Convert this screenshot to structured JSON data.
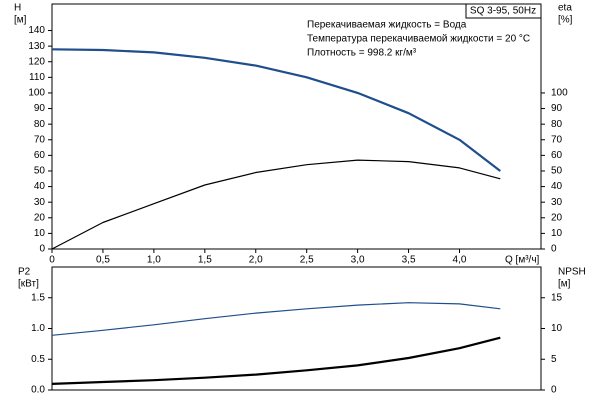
{
  "chart_data": [
    {
      "type": "line",
      "title": "SQ 3-95, 50Hz",
      "annotations": [
        "Перекачиваемая жидкость = Вода",
        "Температура перекачиваемой жидкости = 20 °C",
        "Плотность = 998.2 кг/м³"
      ],
      "x_label": "Q [м³/ч]",
      "y_label": [
        "H",
        "[м]"
      ],
      "y2_label": [
        "eta",
        "[%]"
      ],
      "x": [
        0,
        0.5,
        1,
        1.5,
        2,
        2.5,
        3,
        3.5,
        4,
        4.4
      ],
      "series": [
        {
          "name": "H",
          "color": "#1f4e8c",
          "values": [
            128,
            127.5,
            126,
            122.5,
            117.5,
            110,
            100,
            87,
            70,
            50
          ]
        },
        {
          "name": "eta",
          "color": "#000000",
          "axis": "y2",
          "values": [
            0,
            17,
            29,
            41,
            49,
            54,
            57,
            56,
            52,
            45
          ]
        }
      ],
      "xlim": [
        0,
        4.8
      ],
      "xticks": [
        0,
        {
          "value": 0.5,
          "label": "0,5"
        },
        {
          "value": 1,
          "label": "1,0"
        },
        {
          "value": 1.5,
          "label": "1,5"
        },
        {
          "value": 2,
          "label": "2,0"
        },
        {
          "value": 2.5,
          "label": "2,5"
        },
        {
          "value": 3,
          "label": "3,0"
        },
        {
          "value": 3.5,
          "label": "3,5"
        },
        {
          "value": 4,
          "label": "4,0"
        }
      ],
      "ylim": [
        0,
        157
      ],
      "yticks": [
        0,
        10,
        20,
        30,
        40,
        50,
        60,
        70,
        80,
        90,
        100,
        110,
        120,
        130,
        140
      ],
      "y2lim": [
        0,
        157
      ],
      "y2ticks": [
        0,
        10,
        20,
        30,
        40,
        50,
        60,
        70,
        80,
        90,
        100
      ]
    },
    {
      "type": "line",
      "y_label": [
        "P2",
        "[кВт]"
      ],
      "y2_label": [
        "NPSH",
        "[м]"
      ],
      "x": [
        0,
        0.5,
        1,
        1.5,
        2,
        2.5,
        3,
        3.5,
        4,
        4.4
      ],
      "series": [
        {
          "name": "P2",
          "color": "#1f4e8c",
          "values": [
            0.89,
            0.97,
            1.06,
            1.16,
            1.25,
            1.32,
            1.38,
            1.42,
            1.4,
            1.32
          ]
        },
        {
          "name": "NPSH",
          "color": "#000000",
          "axis": "y2",
          "values": [
            1.0,
            1.3,
            1.6,
            2.0,
            2.5,
            3.2,
            4.0,
            5.2,
            6.8,
            8.5
          ]
        }
      ],
      "xlim": [
        0,
        4.8
      ],
      "ylim": [
        0,
        2
      ],
      "yticks": [
        {
          "value": 0,
          "label": "0.0"
        },
        {
          "value": 0.5,
          "label": "0.5"
        },
        {
          "value": 1,
          "label": "1.0"
        },
        {
          "value": 1.5,
          "label": "1.5"
        }
      ],
      "y2lim": [
        0,
        20
      ],
      "y2ticks": [
        0,
        5,
        10,
        15
      ]
    }
  ]
}
